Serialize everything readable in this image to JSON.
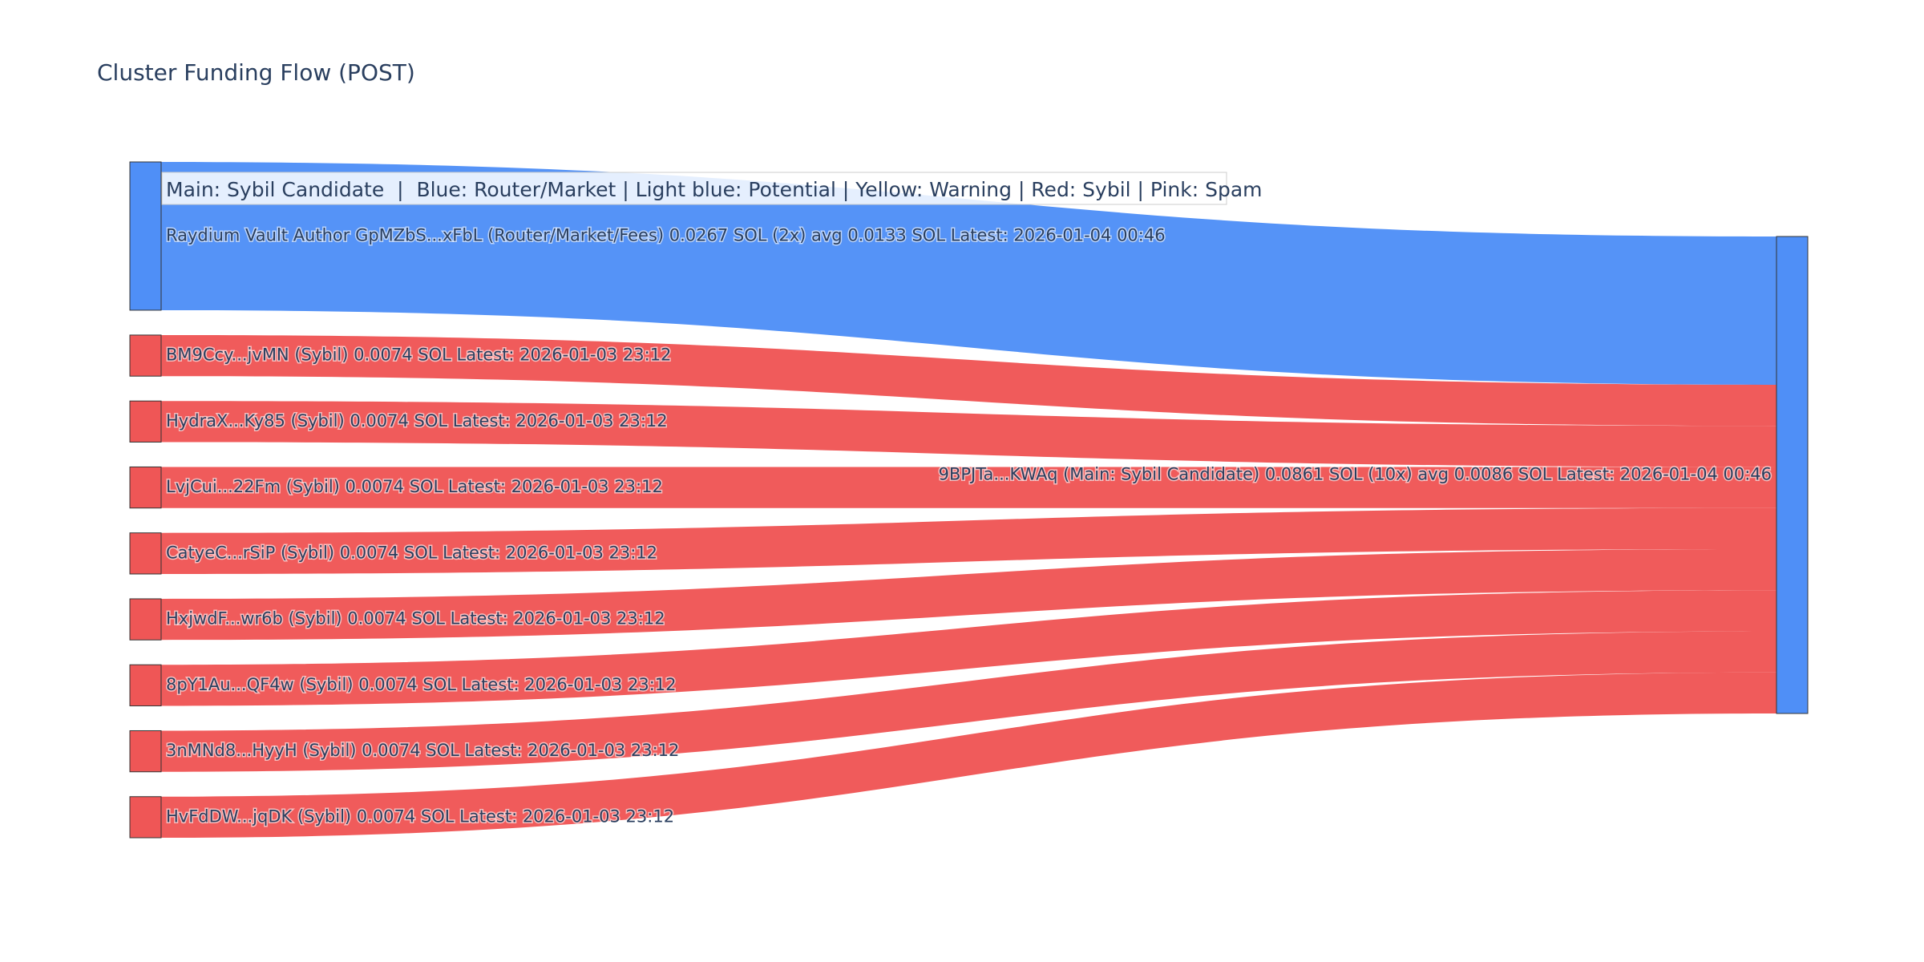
{
  "chart_data": {
    "type": "sankey",
    "title": "Cluster Funding Flow (POST)",
    "legend_text": "Main: Sybil Candidate  |  Blue: Router/Market | Light blue: Potential | Yellow: Warning | Red: Sybil | Pink: Spam",
    "colors": {
      "router": "#4f8ff7",
      "sybil": "#ef5656",
      "main": "#4f8ff7",
      "node_border": "#333333",
      "label": "#2a3f5f"
    },
    "target": {
      "label": "9BPJTa...KWAq (Main: Sybil Candidate) 0.0861 SOL (10x) avg 0.0086 SOL Latest: 2026-01-04 00:46",
      "category": "main"
    },
    "sources": [
      {
        "label": "Raydium Vault Author GpMZbS...xFbL (Router/Market/Fees) 0.0267 SOL (2x) avg 0.0133 SOL Latest: 2026-01-04 00:46",
        "value": 0.0267,
        "category": "router"
      },
      {
        "label": "BM9Ccy...jvMN (Sybil) 0.0074 SOL Latest: 2026-01-03 23:12",
        "value": 0.0074,
        "category": "sybil"
      },
      {
        "label": "HydraX...Ky85 (Sybil) 0.0074 SOL Latest: 2026-01-03 23:12",
        "value": 0.0074,
        "category": "sybil"
      },
      {
        "label": "LvjCui...22Fm (Sybil) 0.0074 SOL Latest: 2026-01-03 23:12",
        "value": 0.0074,
        "category": "sybil"
      },
      {
        "label": "CatyeC...rSiP (Sybil) 0.0074 SOL Latest: 2026-01-03 23:12",
        "value": 0.0074,
        "category": "sybil"
      },
      {
        "label": "HxjwdF...wr6b (Sybil) 0.0074 SOL Latest: 2026-01-03 23:12",
        "value": 0.0074,
        "category": "sybil"
      },
      {
        "label": "8pY1Au...QF4w (Sybil) 0.0074 SOL Latest: 2026-01-03 23:12",
        "value": 0.0074,
        "category": "sybil"
      },
      {
        "label": "3nMNd8...HyyH (Sybil) 0.0074 SOL Latest: 2026-01-03 23:12",
        "value": 0.0074,
        "category": "sybil"
      },
      {
        "label": "HvFdDW...jqDK (Sybil) 0.0074 SOL Latest: 2026-01-03 23:12",
        "value": 0.0074,
        "category": "sybil"
      }
    ]
  }
}
